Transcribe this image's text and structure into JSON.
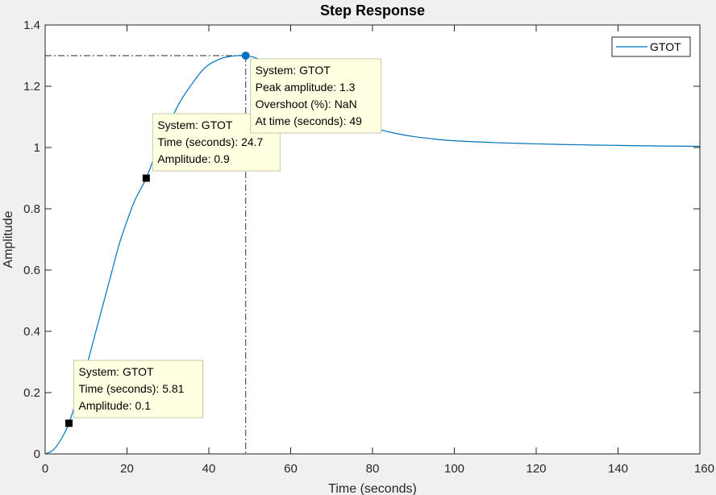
{
  "chart_data": {
    "type": "line",
    "title": "Step Response",
    "xlabel": "Time (seconds)",
    "ylabel": "Amplitude",
    "xlim": [
      0,
      160
    ],
    "ylim": [
      0,
      1.4
    ],
    "xticks": [
      0,
      20,
      40,
      60,
      80,
      100,
      120,
      140,
      160
    ],
    "yticks": [
      0,
      0.2,
      0.4,
      0.6,
      0.8,
      1,
      1.2,
      1.4
    ],
    "xtick_labels": [
      "0",
      "20",
      "40",
      "60",
      "80",
      "100",
      "120",
      "140",
      "160"
    ],
    "ytick_labels": [
      "0",
      "0.2",
      "0.4",
      "0.6",
      "0.8",
      "1",
      "1.2",
      "1.4"
    ],
    "grid": false,
    "legend": {
      "position": "top-right",
      "entries": [
        "GTOT"
      ]
    },
    "series": [
      {
        "name": "GTOT",
        "color": "#0072bd",
        "x": [
          0,
          2,
          4,
          5.81,
          8,
          10,
          12,
          14,
          16,
          18,
          20,
          22,
          24.7,
          27,
          30,
          33,
          36,
          39,
          42,
          45,
          49,
          52,
          55,
          58,
          62,
          66,
          70,
          75,
          80,
          85,
          90,
          95,
          100,
          110,
          120,
          130,
          140,
          150,
          160
        ],
        "y": [
          0,
          0.013,
          0.05,
          0.1,
          0.19,
          0.28,
          0.38,
          0.48,
          0.58,
          0.68,
          0.76,
          0.83,
          0.9,
          0.98,
          1.07,
          1.15,
          1.21,
          1.26,
          1.285,
          1.297,
          1.3,
          1.29,
          1.27,
          1.24,
          1.2,
          1.16,
          1.125,
          1.09,
          1.065,
          1.048,
          1.036,
          1.028,
          1.022,
          1.016,
          1.012,
          1.009,
          1.007,
          1.005,
          1.004
        ]
      }
    ],
    "peak": {
      "x": 49,
      "y": 1.3
    },
    "datatips": [
      {
        "x": 5.81,
        "y": 0.1,
        "lines": [
          "System: GTOT",
          "Time (seconds): 5.81",
          "Amplitude: 0.1"
        ]
      },
      {
        "x": 24.7,
        "y": 0.9,
        "lines": [
          "System: GTOT",
          "Time (seconds): 24.7",
          "Amplitude: 0.9"
        ]
      },
      {
        "x": 49,
        "y": 1.3,
        "lines": [
          "System: GTOT",
          "Peak amplitude: 1.3",
          "Overshoot (%): NaN",
          "At time (seconds): 49"
        ]
      }
    ]
  }
}
